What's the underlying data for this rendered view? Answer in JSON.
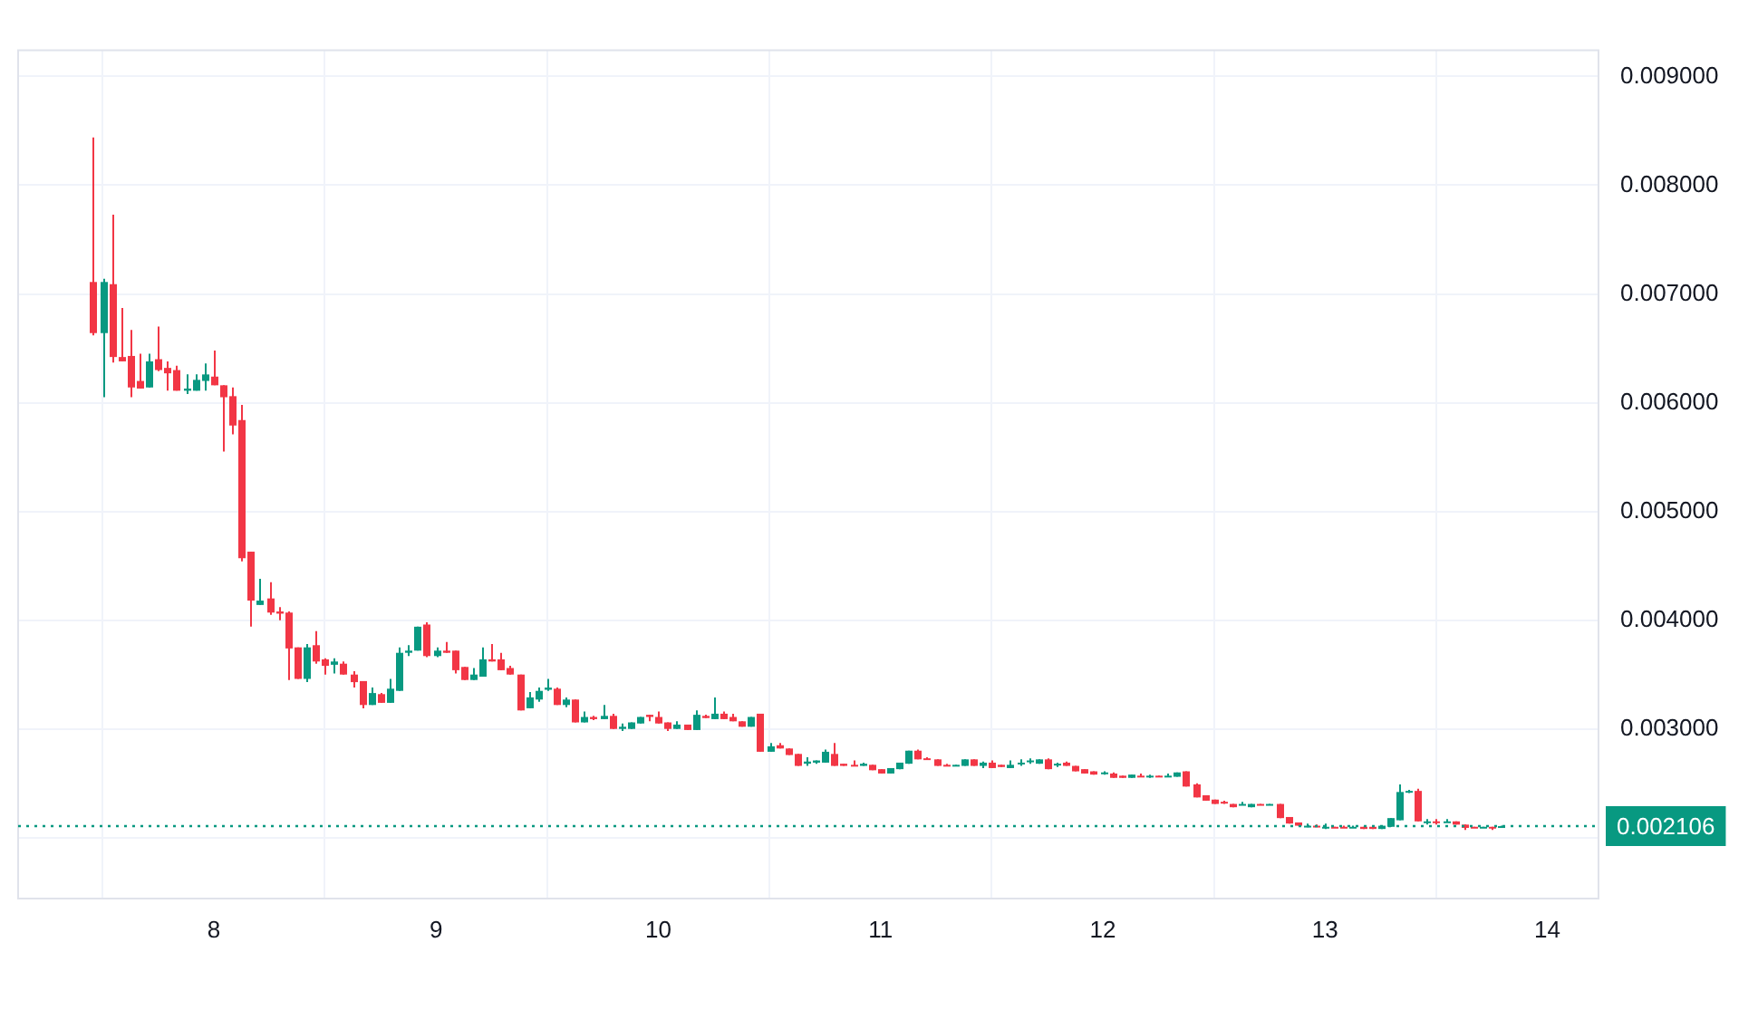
{
  "chart_data": {
    "type": "candlestick",
    "x": [
      7.458,
      7.5,
      7.542,
      7.583,
      7.625,
      7.667,
      7.708,
      7.75,
      7.792,
      7.833,
      7.875,
      7.917,
      7.958,
      8,
      8.042,
      8.083,
      8.125,
      8.167,
      8.208,
      8.25,
      8.292,
      8.333,
      8.375,
      8.417,
      8.458,
      8.5,
      8.542,
      8.583,
      8.625,
      8.667,
      8.708,
      8.75,
      8.792,
      8.833,
      8.875,
      8.917,
      8.958,
      9,
      9.042,
      9.083,
      9.125,
      9.167,
      9.208,
      9.25,
      9.292,
      9.333,
      9.375,
      9.417,
      9.458,
      9.5,
      9.542,
      9.583,
      9.625,
      9.667,
      9.708,
      9.75,
      9.792,
      9.833,
      9.875,
      9.917,
      9.958,
      10,
      10.042,
      10.083,
      10.125,
      10.167,
      10.208,
      10.25,
      10.292,
      10.333,
      10.375,
      10.417,
      10.458,
      10.5,
      10.542,
      10.583,
      10.625,
      10.667,
      10.708,
      10.75,
      10.792,
      10.833,
      10.875,
      10.917,
      10.958,
      11,
      11.042,
      11.083,
      11.125,
      11.167,
      11.208,
      11.25,
      11.292,
      11.333,
      11.375,
      11.417,
      11.458,
      11.5,
      11.542,
      11.583,
      11.625,
      11.667,
      11.708,
      11.75,
      11.792,
      11.833,
      11.875,
      11.917,
      11.958,
      12,
      12.042,
      12.083,
      12.125,
      12.167,
      12.208,
      12.25,
      12.292,
      12.333,
      12.375,
      12.417,
      12.458,
      12.5,
      12.542,
      12.583,
      12.625,
      12.667,
      12.708,
      12.75,
      12.792,
      12.833,
      12.875,
      12.917,
      12.958,
      13,
      13.042,
      13.083,
      13.125,
      13.167,
      13.208,
      13.25,
      13.292,
      13.333,
      13.375,
      13.417,
      13.458,
      13.5,
      13.542,
      13.583,
      13.625,
      13.667,
      13.708,
      13.75,
      13.792
    ],
    "ohlc": [
      [
        0.00711,
        0.00844,
        0.00662,
        0.00664
      ],
      [
        0.00664,
        0.00714,
        0.00605,
        0.00711
      ],
      [
        0.00709,
        0.00773,
        0.00637,
        0.00642
      ],
      [
        0.00642,
        0.00687,
        0.00638,
        0.00638
      ],
      [
        0.00643,
        0.00667,
        0.00605,
        0.00614
      ],
      [
        0.0062,
        0.00645,
        0.00613,
        0.00613
      ],
      [
        0.00614,
        0.00645,
        0.00614,
        0.00638
      ],
      [
        0.0064,
        0.0067,
        0.00629,
        0.0063
      ],
      [
        0.00632,
        0.00638,
        0.00611,
        0.00627
      ],
      [
        0.0063,
        0.00634,
        0.00611,
        0.00611
      ],
      [
        0.00611,
        0.00626,
        0.00608,
        0.00613
      ],
      [
        0.00611,
        0.00626,
        0.00611,
        0.00621
      ],
      [
        0.0062,
        0.00636,
        0.00611,
        0.00626
      ],
      [
        0.00624,
        0.00648,
        0.00616,
        0.00616
      ],
      [
        0.00616,
        0.00616,
        0.00555,
        0.00605
      ],
      [
        0.00606,
        0.00614,
        0.00571,
        0.00579
      ],
      [
        0.00584,
        0.00598,
        0.00454,
        0.00457
      ],
      [
        0.00463,
        0.00463,
        0.00394,
        0.00418
      ],
      [
        0.00414,
        0.00438,
        0.00414,
        0.00418
      ],
      [
        0.0042,
        0.00435,
        0.00405,
        0.00407
      ],
      [
        0.00408,
        0.00412,
        0.004,
        0.00406
      ],
      [
        0.00407,
        0.00408,
        0.00345,
        0.00374
      ],
      [
        0.00375,
        0.00375,
        0.00346,
        0.00346
      ],
      [
        0.00346,
        0.00378,
        0.00343,
        0.00375
      ],
      [
        0.00377,
        0.0039,
        0.0036,
        0.00362
      ],
      [
        0.00364,
        0.00365,
        0.0035,
        0.00358
      ],
      [
        0.00359,
        0.00365,
        0.00351,
        0.00362
      ],
      [
        0.0036,
        0.00362,
        0.0035,
        0.0035
      ],
      [
        0.0035,
        0.00353,
        0.00338,
        0.00343
      ],
      [
        0.00344,
        0.00344,
        0.00319,
        0.00322
      ],
      [
        0.00322,
        0.00338,
        0.00322,
        0.00333
      ],
      [
        0.00332,
        0.00333,
        0.00324,
        0.00324
      ],
      [
        0.00324,
        0.00346,
        0.00324,
        0.00337
      ],
      [
        0.00335,
        0.00375,
        0.00335,
        0.0037
      ],
      [
        0.0037,
        0.00377,
        0.00367,
        0.00372
      ],
      [
        0.00372,
        0.00394,
        0.00372,
        0.00394
      ],
      [
        0.00396,
        0.00398,
        0.00366,
        0.00367
      ],
      [
        0.00367,
        0.00375,
        0.00366,
        0.00372
      ],
      [
        0.00372,
        0.0038,
        0.0037,
        0.0037
      ],
      [
        0.00372,
        0.00372,
        0.00351,
        0.00354
      ],
      [
        0.00357,
        0.00357,
        0.00345,
        0.00345
      ],
      [
        0.00345,
        0.00356,
        0.00345,
        0.0035
      ],
      [
        0.00348,
        0.00375,
        0.00348,
        0.00364
      ],
      [
        0.00364,
        0.00378,
        0.00362,
        0.00362
      ],
      [
        0.00364,
        0.0037,
        0.00354,
        0.00354
      ],
      [
        0.00356,
        0.00358,
        0.0035,
        0.0035
      ],
      [
        0.0035,
        0.0035,
        0.00317,
        0.00317
      ],
      [
        0.00319,
        0.00334,
        0.00319,
        0.00329
      ],
      [
        0.00327,
        0.00338,
        0.00325,
        0.00335
      ],
      [
        0.00336,
        0.00346,
        0.00335,
        0.00338
      ],
      [
        0.00337,
        0.00338,
        0.00322,
        0.00322
      ],
      [
        0.00322,
        0.00329,
        0.0032,
        0.00327
      ],
      [
        0.00327,
        0.00327,
        0.00306,
        0.00306
      ],
      [
        0.00306,
        0.00316,
        0.00306,
        0.00311
      ],
      [
        0.00311,
        0.00312,
        0.00308,
        0.00309
      ],
      [
        0.00309,
        0.00322,
        0.00309,
        0.00312
      ],
      [
        0.00312,
        0.00314,
        0.003,
        0.003
      ],
      [
        0.003,
        0.00305,
        0.00298,
        0.00302
      ],
      [
        0.003,
        0.00306,
        0.003,
        0.00306
      ],
      [
        0.00305,
        0.00311,
        0.00305,
        0.00311
      ],
      [
        0.00313,
        0.00313,
        0.00307,
        0.00311
      ],
      [
        0.00311,
        0.00316,
        0.00305,
        0.00305
      ],
      [
        0.00306,
        0.00306,
        0.00298,
        0.003
      ],
      [
        0.003,
        0.00307,
        0.003,
        0.00304
      ],
      [
        0.00304,
        0.00304,
        0.00299,
        0.00299
      ],
      [
        0.00299,
        0.00317,
        0.00299,
        0.00313
      ],
      [
        0.00312,
        0.00313,
        0.0031,
        0.0031
      ],
      [
        0.00309,
        0.00329,
        0.00309,
        0.00314
      ],
      [
        0.00314,
        0.00316,
        0.00309,
        0.00309
      ],
      [
        0.00311,
        0.00314,
        0.00307,
        0.00307
      ],
      [
        0.00307,
        0.00307,
        0.00302,
        0.00302
      ],
      [
        0.00302,
        0.00311,
        0.00302,
        0.00311
      ],
      [
        0.00314,
        0.00314,
        0.00279,
        0.00279
      ],
      [
        0.00279,
        0.00287,
        0.00279,
        0.00284
      ],
      [
        0.00285,
        0.00287,
        0.00282,
        0.00282
      ],
      [
        0.00282,
        0.00282,
        0.00276,
        0.00276
      ],
      [
        0.00277,
        0.00277,
        0.00266,
        0.00266
      ],
      [
        0.00268,
        0.00274,
        0.00266,
        0.0027
      ],
      [
        0.00269,
        0.00271,
        0.00268,
        0.00271
      ],
      [
        0.00269,
        0.00281,
        0.00269,
        0.00279
      ],
      [
        0.00277,
        0.00287,
        0.00266,
        0.00266
      ],
      [
        0.00268,
        0.00268,
        0.00266,
        0.00266
      ],
      [
        0.00267,
        0.00271,
        0.00266,
        0.00266
      ],
      [
        0.00266,
        0.00269,
        0.00266,
        0.00268
      ],
      [
        0.00267,
        0.00267,
        0.00262,
        0.00262
      ],
      [
        0.00263,
        0.00263,
        0.00259,
        0.00259
      ],
      [
        0.00259,
        0.00264,
        0.00259,
        0.00264
      ],
      [
        0.00263,
        0.00269,
        0.00263,
        0.00269
      ],
      [
        0.00268,
        0.0028,
        0.00268,
        0.0028
      ],
      [
        0.0028,
        0.00281,
        0.00272,
        0.00272
      ],
      [
        0.00273,
        0.00274,
        0.00272,
        0.00272
      ],
      [
        0.00272,
        0.00272,
        0.00266,
        0.00266
      ],
      [
        0.00267,
        0.00268,
        0.00266,
        0.00266
      ],
      [
        0.00266,
        0.00267,
        0.00266,
        0.00267
      ],
      [
        0.00266,
        0.00272,
        0.00266,
        0.00272
      ],
      [
        0.00272,
        0.00272,
        0.00266,
        0.00266
      ],
      [
        0.00266,
        0.0027,
        0.00264,
        0.00269
      ],
      [
        0.00269,
        0.00271,
        0.00264,
        0.00264
      ],
      [
        0.00267,
        0.00267,
        0.00265,
        0.00265
      ],
      [
        0.00264,
        0.00271,
        0.00264,
        0.00267
      ],
      [
        0.00268,
        0.00272,
        0.00266,
        0.00269
      ],
      [
        0.0027,
        0.00273,
        0.00268,
        0.00271
      ],
      [
        0.00268,
        0.00272,
        0.00268,
        0.00272
      ],
      [
        0.00272,
        0.00273,
        0.00263,
        0.00263
      ],
      [
        0.00267,
        0.00269,
        0.00265,
        0.00268
      ],
      [
        0.00269,
        0.0027,
        0.00266,
        0.00266
      ],
      [
        0.00266,
        0.00266,
        0.00261,
        0.00261
      ],
      [
        0.00263,
        0.00263,
        0.00259,
        0.00259
      ],
      [
        0.00261,
        0.00261,
        0.00258,
        0.00258
      ],
      [
        0.00259,
        0.00261,
        0.00258,
        0.0026
      ],
      [
        0.00259,
        0.0026,
        0.00255,
        0.00255
      ],
      [
        0.00257,
        0.00257,
        0.00255,
        0.00255
      ],
      [
        0.00255,
        0.00258,
        0.00255,
        0.00258
      ],
      [
        0.00257,
        0.00259,
        0.00256,
        0.00256
      ],
      [
        0.00256,
        0.00258,
        0.00255,
        0.00257
      ],
      [
        0.00257,
        0.00257,
        0.00256,
        0.00256
      ],
      [
        0.00256,
        0.00259,
        0.00256,
        0.00257
      ],
      [
        0.00256,
        0.0026,
        0.00256,
        0.0026
      ],
      [
        0.00261,
        0.00261,
        0.00247,
        0.00247
      ],
      [
        0.00249,
        0.0025,
        0.00237,
        0.00237
      ],
      [
        0.00239,
        0.00239,
        0.00234,
        0.00234
      ],
      [
        0.00235,
        0.00235,
        0.00231,
        0.00231
      ],
      [
        0.00233,
        0.00234,
        0.00231,
        0.00232
      ],
      [
        0.00231,
        0.00231,
        0.00228,
        0.00228
      ],
      [
        0.0023,
        0.00233,
        0.0023,
        0.00231
      ],
      [
        0.00228,
        0.00231,
        0.00228,
        0.00231
      ],
      [
        0.00231,
        0.00231,
        0.0023,
        0.0023
      ],
      [
        0.0023,
        0.00231,
        0.0023,
        0.00231
      ],
      [
        0.00231,
        0.00231,
        0.00218,
        0.00218
      ],
      [
        0.00219,
        0.00219,
        0.00213,
        0.00213
      ],
      [
        0.00214,
        0.00214,
        0.00211,
        0.00211
      ],
      [
        0.0021,
        0.00213,
        0.0021,
        0.00211
      ],
      [
        0.00211,
        0.00212,
        0.0021,
        0.0021
      ],
      [
        0.00209,
        0.00213,
        0.00208,
        0.0021
      ],
      [
        0.0021,
        0.0021,
        0.00209,
        0.00209
      ],
      [
        0.0021,
        0.00211,
        0.00209,
        0.00209
      ],
      [
        0.00209,
        0.00211,
        0.00209,
        0.0021
      ],
      [
        0.0021,
        0.0021,
        0.00208,
        0.00208
      ],
      [
        0.0021,
        0.0021,
        0.00208,
        0.00208
      ],
      [
        0.00208,
        0.00211,
        0.00208,
        0.00211
      ],
      [
        0.0021,
        0.00218,
        0.0021,
        0.00218
      ],
      [
        0.00216,
        0.00249,
        0.00216,
        0.00242
      ],
      [
        0.00242,
        0.00244,
        0.00241,
        0.00243
      ],
      [
        0.00243,
        0.00245,
        0.00215,
        0.00215
      ],
      [
        0.00214,
        0.00217,
        0.00212,
        0.00215
      ],
      [
        0.00215,
        0.00217,
        0.00212,
        0.00214
      ],
      [
        0.00214,
        0.00217,
        0.00214,
        0.00215
      ],
      [
        0.00215,
        0.00215,
        0.00212,
        0.00212
      ],
      [
        0.00212,
        0.00212,
        0.00207,
        0.00209
      ],
      [
        0.0021,
        0.0021,
        0.00209,
        0.00209
      ],
      [
        0.00209,
        0.0021,
        0.00209,
        0.0021
      ],
      [
        0.0021,
        0.0021,
        0.00207,
        0.00209
      ],
      [
        0.00209,
        0.00211,
        0.00209,
        0.002106
      ]
    ],
    "colors": [
      "#f23645",
      "#089981",
      "#f23645",
      "#f23645",
      "#f23645",
      "#f23645",
      "#089981",
      "#f23645",
      "#f23645",
      "#f23645",
      "#089981",
      "#089981",
      "#089981",
      "#f23645",
      "#f23645",
      "#f23645",
      "#f23645",
      "#f23645",
      "#089981",
      "#f23645",
      "#f23645",
      "#f23645",
      "#f23645",
      "#089981",
      "#f23645",
      "#f23645",
      "#089981",
      "#f23645",
      "#f23645",
      "#f23645",
      "#089981",
      "#f23645",
      "#089981",
      "#089981",
      "#089981",
      "#089981",
      "#f23645",
      "#089981",
      "#f23645",
      "#f23645",
      "#f23645",
      "#089981",
      "#089981",
      "#f23645",
      "#f23645",
      "#f23645",
      "#f23645",
      "#089981",
      "#089981",
      "#089981",
      "#f23645",
      "#089981",
      "#f23645",
      "#089981",
      "#f23645",
      "#089981",
      "#f23645",
      "#089981",
      "#089981",
      "#089981",
      "#f23645",
      "#f23645",
      "#f23645",
      "#089981",
      "#f23645",
      "#089981",
      "#f23645",
      "#089981",
      "#f23645",
      "#f23645",
      "#f23645",
      "#089981",
      "#f23645",
      "#089981",
      "#f23645",
      "#f23645",
      "#f23645",
      "#089981",
      "#089981",
      "#089981",
      "#f23645",
      "#f23645",
      "#f23645",
      "#089981",
      "#f23645",
      "#f23645",
      "#089981",
      "#089981",
      "#089981",
      "#f23645",
      "#f23645",
      "#f23645",
      "#f23645",
      "#089981",
      "#089981",
      "#f23645",
      "#089981",
      "#f23645",
      "#f23645",
      "#089981",
      "#089981",
      "#089981",
      "#089981",
      "#f23645",
      "#089981",
      "#f23645",
      "#f23645",
      "#f23645",
      "#f23645",
      "#089981",
      "#f23645",
      "#f23645",
      "#089981",
      "#f23645",
      "#089981",
      "#f23645",
      "#089981",
      "#089981",
      "#f23645",
      "#f23645",
      "#f23645",
      "#f23645",
      "#f23645",
      "#f23645",
      "#089981",
      "#089981",
      "#f23645",
      "#089981",
      "#f23645",
      "#f23645",
      "#f23645",
      "#089981",
      "#f23645",
      "#089981",
      "#f23645",
      "#f23645",
      "#089981",
      "#f23645",
      "#f23645",
      "#089981",
      "#089981",
      "#089981",
      "#089981",
      "#f23645",
      "#089981",
      "#f23645",
      "#089981",
      "#f23645",
      "#f23645",
      "#f23645",
      "#089981",
      "#f23645",
      "#089981"
    ],
    "xlim": [
      7.12,
      14.23
    ],
    "xticks": [
      8,
      9,
      10,
      11,
      12,
      13,
      14
    ],
    "ylim": [
      0.00144,
      0.00924
    ],
    "yticks": [
      {
        "value": 0.002,
        "label": null
      },
      {
        "value": 0.003,
        "label": "0.003000"
      },
      {
        "value": 0.004,
        "label": "0.004000"
      },
      {
        "value": 0.005,
        "label": "0.005000"
      },
      {
        "value": 0.006,
        "label": "0.006000"
      },
      {
        "value": 0.007,
        "label": "0.007000"
      },
      {
        "value": 0.008,
        "label": "0.008000"
      },
      {
        "value": 0.009,
        "label": "0.009000"
      }
    ],
    "grid": true,
    "ref_lines": [
      {
        "axis": "y",
        "value": 0.002106,
        "label": "0.002106",
        "color": "#089981",
        "line_style": "dotted"
      }
    ]
  }
}
